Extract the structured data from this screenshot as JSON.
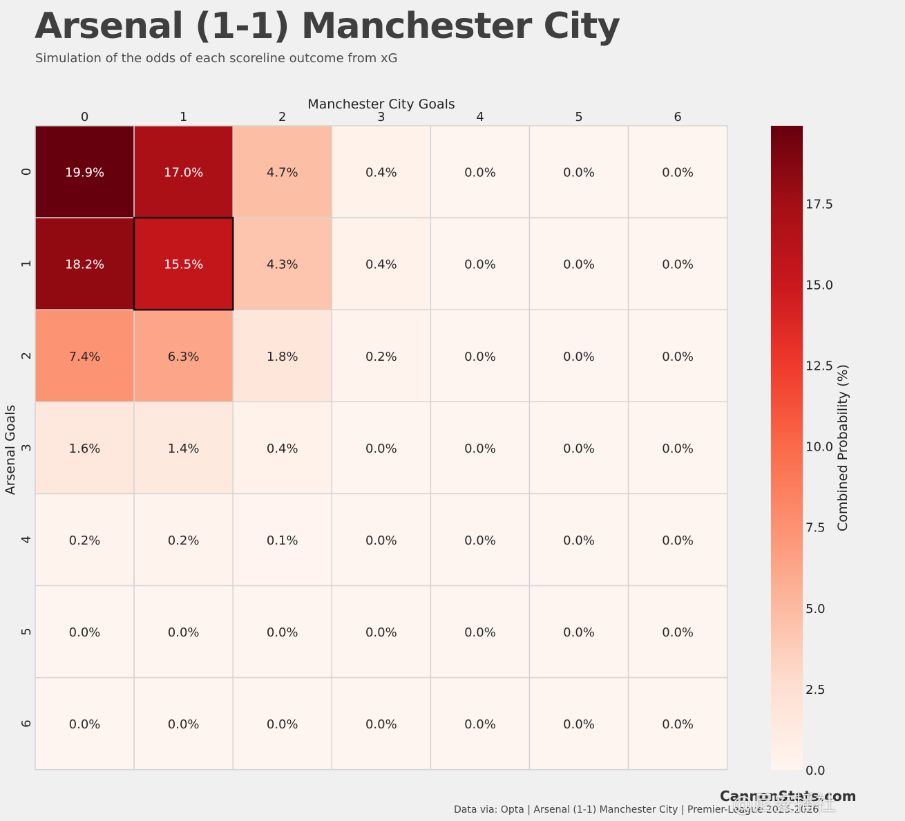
{
  "header": {
    "title": "Arsenal (1-1) Manchester City",
    "subtitle": "Simulation of the odds of each scoreline outcome from xG"
  },
  "chart_data": {
    "type": "heatmap",
    "xlabel": "Manchester City Goals",
    "ylabel": "Arsenal Goals",
    "x": [
      "0",
      "1",
      "2",
      "3",
      "4",
      "5",
      "6"
    ],
    "y": [
      "0",
      "1",
      "2",
      "3",
      "4",
      "5",
      "6"
    ],
    "values": [
      [
        19.9,
        17.0,
        4.7,
        0.4,
        0.0,
        0.0,
        0.0
      ],
      [
        18.2,
        15.5,
        4.3,
        0.4,
        0.0,
        0.0,
        0.0
      ],
      [
        7.4,
        6.3,
        1.8,
        0.2,
        0.0,
        0.0,
        0.0
      ],
      [
        1.6,
        1.4,
        0.4,
        0.0,
        0.0,
        0.0,
        0.0
      ],
      [
        0.2,
        0.2,
        0.1,
        0.0,
        0.0,
        0.0,
        0.0
      ],
      [
        0.0,
        0.0,
        0.0,
        0.0,
        0.0,
        0.0,
        0.0
      ],
      [
        0.0,
        0.0,
        0.0,
        0.0,
        0.0,
        0.0,
        0.0
      ]
    ],
    "cell_labels": [
      [
        "19.9%",
        "17.0%",
        "4.7%",
        "0.4%",
        "0.0%",
        "0.0%",
        "0.0%"
      ],
      [
        "18.2%",
        "15.5%",
        "4.3%",
        "0.4%",
        "0.0%",
        "0.0%",
        "0.0%"
      ],
      [
        "7.4%",
        "6.3%",
        "1.8%",
        "0.2%",
        "0.0%",
        "0.0%",
        "0.0%"
      ],
      [
        "1.6%",
        "1.4%",
        "0.4%",
        "0.0%",
        "0.0%",
        "0.0%",
        "0.0%"
      ],
      [
        "0.2%",
        "0.2%",
        "0.1%",
        "0.0%",
        "0.0%",
        "0.0%",
        "0.0%"
      ],
      [
        "0.0%",
        "0.0%",
        "0.0%",
        "0.0%",
        "0.0%",
        "0.0%",
        "0.0%"
      ],
      [
        "0.0%",
        "0.0%",
        "0.0%",
        "0.0%",
        "0.0%",
        "0.0%",
        "0.0%"
      ]
    ],
    "highlight": {
      "row": 1,
      "col": 1
    },
    "colormap": "Reds",
    "colorbar": {
      "label": "Combined Probability (%)",
      "range": [
        0,
        19.9
      ],
      "ticks": [
        0.0,
        2.5,
        5.0,
        7.5,
        10.0,
        12.5,
        15.0,
        17.5
      ],
      "tick_labels": [
        "0.0",
        "2.5",
        "5.0",
        "7.5",
        "10.0",
        "12.5",
        "15.0",
        "17.5"
      ]
    },
    "x_axis_position": "top"
  },
  "colors": {
    "background": "#f0f0f0",
    "grid_line": "#d4d4d4",
    "highlight_border": "#111111",
    "reds": [
      "#fff5f0",
      "#fee0d2",
      "#fcbba1",
      "#fc9272",
      "#fb6a4a",
      "#ef3b2c",
      "#cb181d",
      "#a50f15",
      "#67000d"
    ]
  },
  "footer": {
    "brand": "CannonStats.com",
    "source": "Data via: Opta | Arsenal (1-1) Manchester City | Premier-League 2025-2026"
  },
  "watermark": "@尼安播社"
}
